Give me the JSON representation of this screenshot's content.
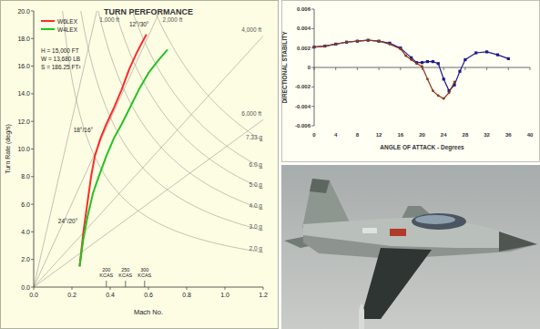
{
  "chart_data": [
    {
      "type": "line",
      "title": "TURN PERFORMANCE",
      "x_label": "Mach No.",
      "y_label": "Turn Rate (deg/s)",
      "xlim": [
        0,
        1.2
      ],
      "xticks": [
        {
          "value": 0,
          "label": "0.0"
        },
        0.2,
        0.4,
        0.6,
        0.8,
        {
          "value": 1,
          "label": "1.0"
        },
        1.2
      ],
      "ylim": [
        0,
        20
      ],
      "yticks": [
        {
          "value": 0,
          "label": "0.0"
        },
        {
          "value": 2,
          "label": "2.0"
        },
        {
          "value": 4,
          "label": "4.0"
        },
        {
          "value": 6,
          "label": "6.0"
        },
        {
          "value": 8,
          "label": "8.0"
        },
        {
          "value": 10,
          "label": "10.0"
        },
        {
          "value": 12,
          "label": "12.0"
        },
        {
          "value": 14,
          "label": "14.0"
        },
        {
          "value": 16,
          "label": "16.0"
        },
        {
          "value": 18,
          "label": "18.0"
        },
        {
          "value": 20,
          "label": "20.0"
        }
      ],
      "legend": "top-left",
      "series": [
        {
          "name": "W6LEX",
          "color": "#ff2a2a",
          "x": [
            0.24,
            0.26,
            0.28,
            0.3,
            0.32,
            0.35,
            0.38,
            0.42,
            0.46,
            0.5,
            0.54,
            0.57,
            0.59
          ],
          "values": [
            1.5,
            4.0,
            6.0,
            8.0,
            9.5,
            10.8,
            11.8,
            13.0,
            14.3,
            15.8,
            17.0,
            17.8,
            18.3
          ]
        },
        {
          "name": "W4LEX",
          "color": "#22c322",
          "x": [
            0.24,
            0.26,
            0.28,
            0.31,
            0.34,
            0.38,
            0.42,
            0.46,
            0.5,
            0.55,
            0.6,
            0.65,
            0.7
          ],
          "values": [
            1.5,
            3.5,
            5.0,
            6.8,
            8.0,
            9.5,
            10.8,
            11.8,
            12.9,
            14.3,
            15.5,
            16.4,
            17.2
          ]
        }
      ],
      "conditions": [
        "H = 15,000 FT",
        "W = 13,680 LB",
        "S = 186.25 FT²"
      ],
      "flap_labels": [
        {
          "text": "12°/30°",
          "x": 0.5,
          "y": 18.9
        },
        {
          "text": "18°/16°",
          "x": 0.31,
          "y": 11.2
        },
        {
          "text": "24°/20°",
          "x": 0.23,
          "y": 4.6
        }
      ],
      "radius_lines": [
        {
          "value": 1000,
          "label": "1,000 ft"
        },
        {
          "value": 2000,
          "label": "2,000 ft"
        },
        {
          "value": 4000,
          "label": "4,000 ft"
        },
        {
          "value": 6000,
          "label": "6,000 ft"
        }
      ],
      "g_lines": [
        {
          "value": 2,
          "label": "2.0 g"
        },
        {
          "value": 3,
          "label": "3.0 g"
        },
        {
          "value": 4,
          "label": "4.0 g"
        },
        {
          "value": 5,
          "label": "5.0 g"
        },
        {
          "value": 6,
          "label": "6.0 g"
        },
        {
          "value": 7.33,
          "label": "7.33 g"
        }
      ],
      "speed_marks": [
        {
          "value": 0.38,
          "label": "200 KCAS"
        },
        {
          "value": 0.48,
          "label": "250 KCAS"
        },
        {
          "value": 0.58,
          "label": "300 KCAS"
        }
      ]
    },
    {
      "type": "line",
      "x_label": "ANGLE OF ATTACK - Degrees",
      "y_label": "DIRECTIONAL STABILITY",
      "xlim": [
        0,
        40
      ],
      "xticks": [
        0,
        4,
        8,
        12,
        16,
        20,
        24,
        28,
        32,
        36,
        40
      ],
      "ylim": [
        -0.006,
        0.006
      ],
      "yticks": [
        -0.006,
        -0.004,
        -0.002,
        0,
        0.002,
        0.004,
        0.006
      ],
      "series": [
        {
          "color": "#1a1a8c",
          "marker": "square",
          "x": [
            0,
            2,
            4,
            6,
            8,
            10,
            12,
            14,
            16,
            18,
            19,
            20,
            21,
            22,
            23,
            24,
            25,
            26,
            27,
            28,
            30,
            32,
            34,
            36
          ],
          "values": [
            0.0021,
            0.0022,
            0.0024,
            0.0026,
            0.0027,
            0.0028,
            0.0027,
            0.0025,
            0.002,
            0.001,
            0.0005,
            0.0005,
            0.0006,
            0.0006,
            0.0004,
            -0.0012,
            -0.0024,
            -0.0018,
            -0.0004,
            0.0008,
            0.0015,
            0.0016,
            0.0013,
            0.0009
          ]
        },
        {
          "color": "#8b3a1a",
          "marker": "circle",
          "x": [
            0,
            2,
            4,
            6,
            8,
            10,
            12,
            14,
            16,
            17,
            18,
            19,
            20,
            21,
            22,
            23,
            24,
            25,
            26
          ],
          "values": [
            0.0021,
            0.0022,
            0.0024,
            0.0026,
            0.0027,
            0.0028,
            0.0027,
            0.0024,
            0.0019,
            0.0012,
            0.0008,
            0.0004,
            0.0001,
            -0.0012,
            -0.0024,
            -0.0029,
            -0.0032,
            -0.0026,
            -0.0015
          ]
        }
      ]
    }
  ]
}
